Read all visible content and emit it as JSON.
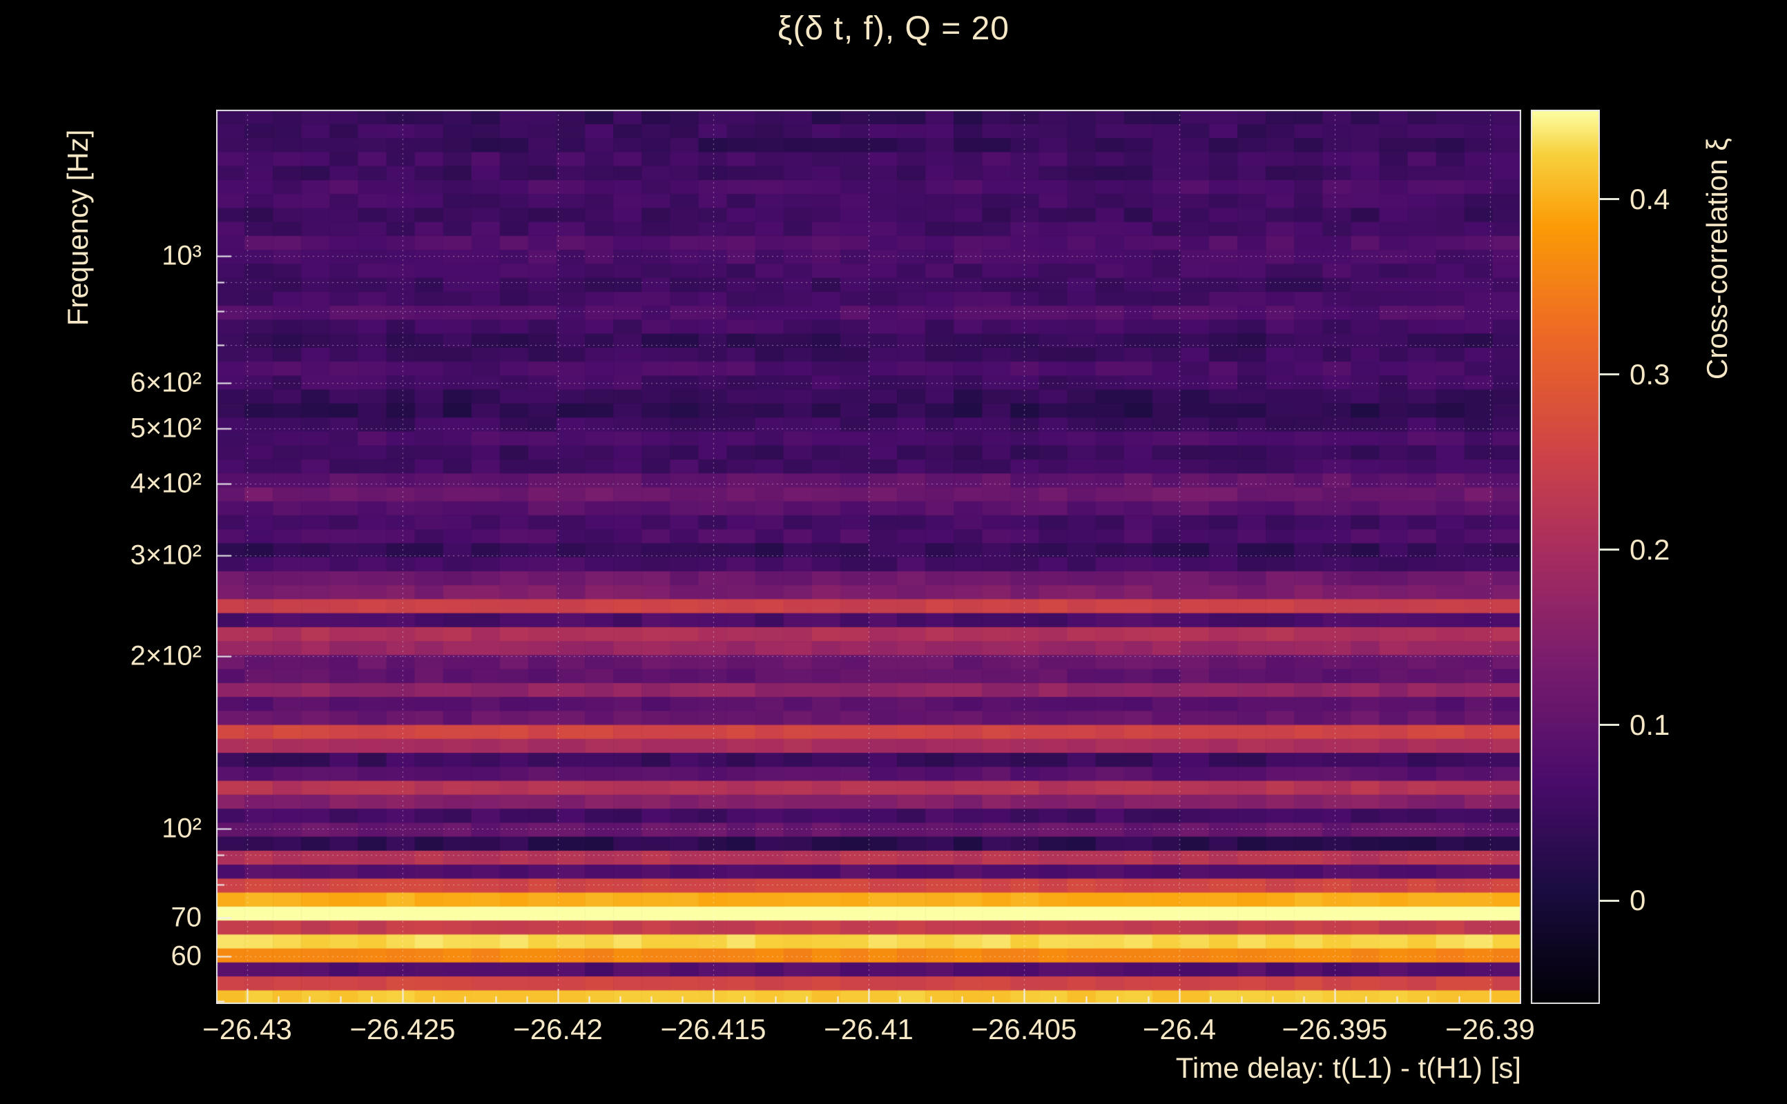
{
  "chart_data": {
    "type": "heatmap",
    "title": "ξ(δ t, f), Q = 20",
    "xlabel": "Time delay: t(L1) - t(H1) [s]",
    "ylabel": "Frequency [Hz]",
    "colorbar_label": "Cross-correlation ξ",
    "xlim": [
      -26.431,
      -26.389
    ],
    "ylim": [
      49.5,
      1800
    ],
    "x_ticks": [
      {
        "value": -26.43,
        "label": "−26.43"
      },
      {
        "value": -26.425,
        "label": "−26.425"
      },
      {
        "value": -26.42,
        "label": "−26.42"
      },
      {
        "value": -26.415,
        "label": "−26.415"
      },
      {
        "value": -26.41,
        "label": "−26.41"
      },
      {
        "value": -26.405,
        "label": "−26.405"
      },
      {
        "value": -26.4,
        "label": "−26.4"
      },
      {
        "value": -26.395,
        "label": "−26.395"
      },
      {
        "value": -26.39,
        "label": "−26.39"
      }
    ],
    "x_minor_tick_step": 0.001,
    "y_ticks": [
      {
        "value": 1000,
        "label": "10³"
      },
      {
        "value": 600,
        "label": "6×10²"
      },
      {
        "value": 500,
        "label": "5×10²"
      },
      {
        "value": 400,
        "label": "4×10²"
      },
      {
        "value": 300,
        "label": "3×10²"
      },
      {
        "value": 200,
        "label": "2×10²"
      },
      {
        "value": 100,
        "label": "10²"
      },
      {
        "value": 70,
        "label": "70"
      },
      {
        "value": 60,
        "label": "60"
      }
    ],
    "y_minor_ticks": [
      50,
      60,
      70,
      80,
      90,
      100,
      200,
      300,
      400,
      500,
      600,
      700,
      800,
      900,
      1000
    ],
    "grid_freqs": [
      60,
      70,
      80,
      90,
      100,
      200,
      300,
      400,
      500,
      600,
      700,
      800,
      900,
      1000
    ],
    "color_scale": {
      "min": -0.059,
      "max": 0.451,
      "colormap": "inferno",
      "ticks": [
        {
          "value": 0.4,
          "label": "0.4"
        },
        {
          "value": 0.3,
          "label": "0.3"
        },
        {
          "value": 0.2,
          "label": "0.2"
        },
        {
          "value": 0.1,
          "label": "0.1"
        },
        {
          "value": 0.0,
          "label": "0"
        }
      ]
    },
    "x_bins": {
      "min": -26.431,
      "max": -26.389,
      "n": 46
    },
    "noise_amplitude": 0.02,
    "rows": [
      {
        "f": 49.5,
        "xi": 0.42
      },
      {
        "f": 52.4,
        "xi": 0.26
      },
      {
        "f": 55.5,
        "xi": 0.08
      },
      {
        "f": 58.7,
        "xi": 0.36
      },
      {
        "f": 62.1,
        "xi": 0.43
      },
      {
        "f": 65.8,
        "xi": 0.24
      },
      {
        "f": 69.6,
        "xi": 0.46
      },
      {
        "f": 73.7,
        "xi": 0.4
      },
      {
        "f": 78.0,
        "xi": 0.26
      },
      {
        "f": 82.6,
        "xi": 0.08
      },
      {
        "f": 87.4,
        "xi": 0.22
      },
      {
        "f": 92.5,
        "xi": 0.03
      },
      {
        "f": 98.0,
        "xi": 0.11
      },
      {
        "f": 103.7,
        "xi": 0.06
      },
      {
        "f": 109.8,
        "xi": 0.15
      },
      {
        "f": 116.2,
        "xi": 0.22
      },
      {
        "f": 123.0,
        "xi": 0.09
      },
      {
        "f": 130.2,
        "xi": 0.05
      },
      {
        "f": 137.9,
        "xi": 0.2
      },
      {
        "f": 146.0,
        "xi": 0.26
      },
      {
        "f": 154.5,
        "xi": 0.11
      },
      {
        "f": 163.6,
        "xi": 0.09
      },
      {
        "f": 173.2,
        "xi": 0.17
      },
      {
        "f": 183.3,
        "xi": 0.1
      },
      {
        "f": 194.0,
        "xi": 0.11
      },
      {
        "f": 205.4,
        "xi": 0.18
      },
      {
        "f": 217.4,
        "xi": 0.21
      },
      {
        "f": 230.2,
        "xi": 0.07
      },
      {
        "f": 243.6,
        "xi": 0.25
      },
      {
        "f": 257.9,
        "xi": 0.14
      },
      {
        "f": 273.0,
        "xi": 0.12
      },
      {
        "f": 289.0,
        "xi": 0.06
      },
      {
        "f": 305.9,
        "xi": 0.04
      },
      {
        "f": 323.8,
        "xi": 0.07
      },
      {
        "f": 342.8,
        "xi": 0.06
      },
      {
        "f": 362.9,
        "xi": 0.09
      },
      {
        "f": 384.1,
        "xi": 0.12
      },
      {
        "f": 406.6,
        "xi": 0.1
      },
      {
        "f": 430.4,
        "xi": 0.06
      },
      {
        "f": 455.6,
        "xi": 0.05
      },
      {
        "f": 482.3,
        "xi": 0.07
      },
      {
        "f": 510.5,
        "xi": 0.05
      },
      {
        "f": 540.4,
        "xi": 0.03
      },
      {
        "f": 572.1,
        "xi": 0.04
      },
      {
        "f": 605.6,
        "xi": 0.06
      },
      {
        "f": 641.0,
        "xi": 0.07
      },
      {
        "f": 678.6,
        "xi": 0.05
      },
      {
        "f": 718.3,
        "xi": 0.04
      },
      {
        "f": 760.4,
        "xi": 0.06
      },
      {
        "f": 804.9,
        "xi": 0.08
      },
      {
        "f": 852.0,
        "xi": 0.06
      },
      {
        "f": 901.9,
        "xi": 0.05
      },
      {
        "f": 954.8,
        "xi": 0.06
      },
      {
        "f": 1010.7,
        "xi": 0.07
      },
      {
        "f": 1069.9,
        "xi": 0.08
      },
      {
        "f": 1132.6,
        "xi": 0.06
      },
      {
        "f": 1198.9,
        "xi": 0.05
      },
      {
        "f": 1269.1,
        "xi": 0.06
      },
      {
        "f": 1343.5,
        "xi": 0.07
      },
      {
        "f": 1422.2,
        "xi": 0.05
      },
      {
        "f": 1505.5,
        "xi": 0.06
      },
      {
        "f": 1593.6,
        "xi": 0.04
      },
      {
        "f": 1687.0,
        "xi": 0.05
      },
      {
        "f": 1785.9,
        "xi": 0.04
      }
    ]
  },
  "colors": {
    "background": "#000000",
    "text": "#f6e8c6",
    "frame": "#e6e6e6",
    "grid": "rgba(255,255,255,0.45)"
  }
}
